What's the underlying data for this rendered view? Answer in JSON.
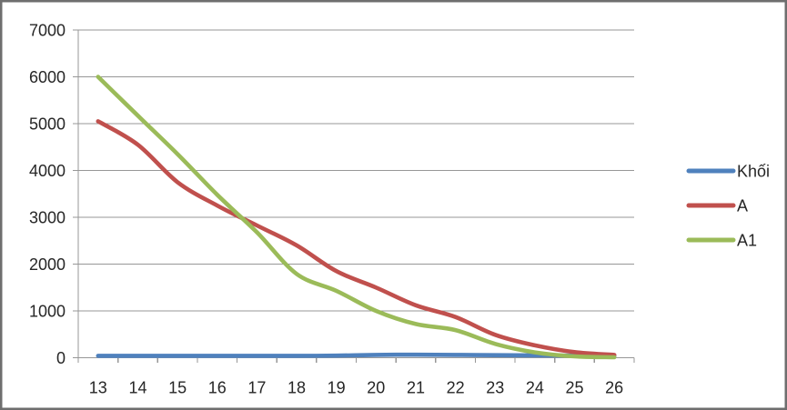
{
  "frame": {
    "background": "#ffffff",
    "border_color": "#6e6e6e"
  },
  "chart_data": {
    "type": "line",
    "smoothed": true,
    "title": "",
    "xlabel": "",
    "ylabel": "",
    "categories": [
      13,
      14,
      15,
      16,
      17,
      18,
      19,
      20,
      21,
      22,
      23,
      24,
      25,
      26
    ],
    "series": [
      {
        "name": "Khối",
        "color": "#4F81BD",
        "values": [
          40,
          40,
          40,
          40,
          40,
          40,
          45,
          60,
          65,
          60,
          55,
          50,
          45,
          40
        ]
      },
      {
        "name": "A",
        "color": "#C0504D",
        "values": [
          5050,
          4550,
          3750,
          3250,
          2825,
          2400,
          1850,
          1500,
          1120,
          870,
          490,
          265,
          120,
          60
        ]
      },
      {
        "name": "A1",
        "color": "#9BBB59",
        "values": [
          6000,
          5170,
          4350,
          3480,
          2680,
          1790,
          1430,
          1000,
          720,
          590,
          295,
          115,
          30,
          10
        ]
      }
    ],
    "ylim": [
      0,
      7000
    ],
    "y_tick_step": 1000,
    "y_tick_labels": [
      "0",
      "1000",
      "2000",
      "3000",
      "4000",
      "5000",
      "6000",
      "7000"
    ],
    "grid": true,
    "gridline_color": "#979797",
    "axis_color": "#979797",
    "tick_label_color": "#262626",
    "legend_position": "right",
    "legend_labels": [
      "Khối",
      "A",
      "A1"
    ]
  }
}
